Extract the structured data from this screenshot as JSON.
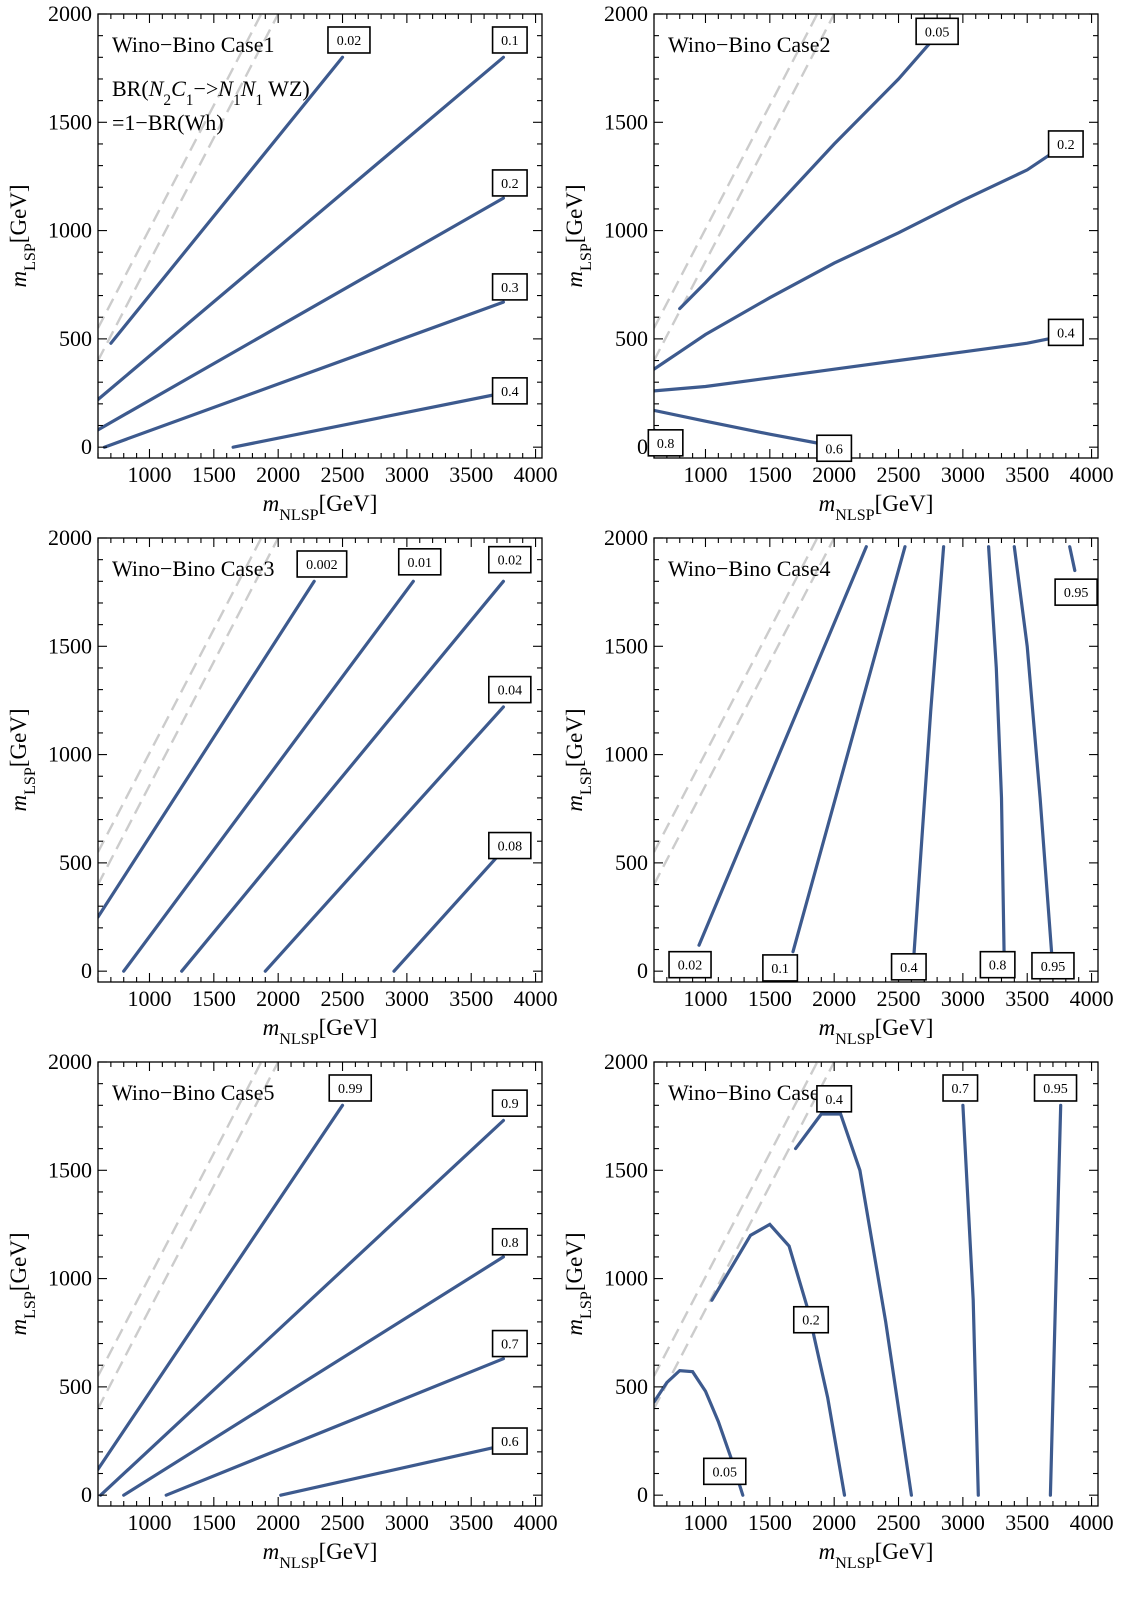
{
  "chart_data": [
    {
      "type": "line",
      "title": "Wino−Bino Case1",
      "subtitle_lines": [
        "BR(N2C1−>N1N1 WZ)",
        "=1−BR(Wh)"
      ],
      "xlabel": "m_NLSP[GeV]",
      "ylabel": "m_LSP[GeV]",
      "xlim": [
        600,
        4050
      ],
      "ylim": [
        -50,
        2000
      ],
      "x_ticks": [
        1000,
        1500,
        2000,
        2500,
        3000,
        3500,
        4000
      ],
      "y_ticks": [
        0,
        500,
        1000,
        1500,
        2000
      ],
      "guides": [
        [
          [
            600,
            400
          ],
          [
            2000,
            2000
          ]
        ],
        [
          [
            600,
            550
          ],
          [
            2000,
            2150
          ]
        ]
      ],
      "series": [
        {
          "name": "0.02",
          "points": [
            [
              700,
              480
            ],
            [
              2500,
              1800
            ]
          ],
          "label_at": [
            2550,
            1880
          ]
        },
        {
          "name": "0.1",
          "points": [
            [
              600,
              220
            ],
            [
              3750,
              1800
            ]
          ],
          "label_at": [
            3800,
            1880
          ]
        },
        {
          "name": "0.2",
          "points": [
            [
              600,
              80
            ],
            [
              3750,
              1150
            ]
          ],
          "label_at": [
            3800,
            1220
          ]
        },
        {
          "name": "0.3",
          "points": [
            [
              650,
              0
            ],
            [
              3750,
              670
            ]
          ],
          "label_at": [
            3800,
            740
          ]
        },
        {
          "name": "0.4",
          "points": [
            [
              1650,
              0
            ],
            [
              3750,
              250
            ]
          ],
          "label_at": [
            3800,
            260
          ]
        }
      ]
    },
    {
      "type": "line",
      "title": "Wino−Bino Case2",
      "xlabel": "m_NLSP[GeV]",
      "ylabel": "m_LSP[GeV]",
      "xlim": [
        600,
        4050
      ],
      "ylim": [
        -50,
        2000
      ],
      "x_ticks": [
        1000,
        1500,
        2000,
        2500,
        3000,
        3500,
        4000
      ],
      "y_ticks": [
        0,
        500,
        1000,
        1500,
        2000
      ],
      "guides": [
        [
          [
            600,
            400
          ],
          [
            2000,
            2000
          ]
        ],
        [
          [
            600,
            550
          ],
          [
            2000,
            2150
          ]
        ]
      ],
      "series": [
        {
          "name": "0.05",
          "points": [
            [
              800,
              640
            ],
            [
              1000,
              760
            ],
            [
              1500,
              1080
            ],
            [
              2000,
              1400
            ],
            [
              2500,
              1700
            ],
            [
              2750,
              1870
            ]
          ],
          "label_at": [
            2800,
            1920
          ]
        },
        {
          "name": "0.2",
          "points": [
            [
              600,
              360
            ],
            [
              700,
              400
            ],
            [
              800,
              440
            ],
            [
              1000,
              520
            ],
            [
              1500,
              690
            ],
            [
              2000,
              850
            ],
            [
              2500,
              990
            ],
            [
              3000,
              1140
            ],
            [
              3500,
              1280
            ],
            [
              3750,
              1380
            ]
          ],
          "label_at": [
            3800,
            1400
          ]
        },
        {
          "name": "0.4",
          "points": [
            [
              600,
              260
            ],
            [
              1000,
              280
            ],
            [
              1500,
              320
            ],
            [
              2000,
              360
            ],
            [
              2500,
              400
            ],
            [
              3000,
              440
            ],
            [
              3500,
              480
            ],
            [
              3750,
              510
            ]
          ],
          "label_at": [
            3800,
            530
          ]
        },
        {
          "name": "0.6",
          "points": [
            [
              600,
              170
            ],
            [
              1000,
              120
            ],
            [
              1500,
              60
            ],
            [
              1950,
              10
            ]
          ],
          "label_at": [
            2000,
            -5
          ]
        },
        {
          "name": "0.8",
          "points": [
            [
              600,
              80
            ],
            [
              620,
              70
            ]
          ],
          "label_at": [
            690,
            20
          ]
        }
      ]
    },
    {
      "type": "line",
      "title": "Wino−Bino Case3",
      "xlabel": "m_NLSP[GeV]",
      "ylabel": "m_LSP[GeV]",
      "xlim": [
        600,
        4050
      ],
      "ylim": [
        -50,
        2000
      ],
      "x_ticks": [
        1000,
        1500,
        2000,
        2500,
        3000,
        3500,
        4000
      ],
      "y_ticks": [
        0,
        500,
        1000,
        1500,
        2000
      ],
      "guides": [
        [
          [
            600,
            400
          ],
          [
            2000,
            2000
          ]
        ],
        [
          [
            600,
            550
          ],
          [
            2000,
            2150
          ]
        ]
      ],
      "series": [
        {
          "name": "0.002",
          "points": [
            [
              600,
              250
            ],
            [
              2280,
              1800
            ]
          ],
          "label_at": [
            2340,
            1880
          ]
        },
        {
          "name": "0.01",
          "points": [
            [
              800,
              0
            ],
            [
              3050,
              1800
            ]
          ],
          "label_at": [
            3100,
            1890
          ]
        },
        {
          "name": "0.02",
          "points": [
            [
              1250,
              0
            ],
            [
              3750,
              1800
            ]
          ],
          "label_at": [
            3800,
            1900
          ]
        },
        {
          "name": "0.04",
          "points": [
            [
              1900,
              0
            ],
            [
              3750,
              1220
            ]
          ],
          "label_at": [
            3800,
            1300
          ]
        },
        {
          "name": "0.08",
          "points": [
            [
              2900,
              0
            ],
            [
              3750,
              560
            ]
          ],
          "label_at": [
            3800,
            580
          ]
        }
      ]
    },
    {
      "type": "line",
      "title": "Wino−Bino Case4",
      "xlabel": "m_NLSP[GeV]",
      "ylabel": "m_LSP[GeV]",
      "xlim": [
        600,
        4050
      ],
      "ylim": [
        -50,
        2000
      ],
      "x_ticks": [
        1000,
        1500,
        2000,
        2500,
        3000,
        3500,
        4000
      ],
      "y_ticks": [
        0,
        500,
        1000,
        1500,
        2000
      ],
      "guides": [
        [
          [
            600,
            400
          ],
          [
            2000,
            2000
          ]
        ],
        [
          [
            600,
            550
          ],
          [
            2000,
            2150
          ]
        ]
      ],
      "series": [
        {
          "name": "0.02",
          "points": [
            [
              950,
              120
            ],
            [
              2250,
              1960
            ]
          ],
          "label_at": [
            880,
            30
          ]
        },
        {
          "name": "0.1",
          "points": [
            [
              1680,
              90
            ],
            [
              2550,
              1960
            ]
          ],
          "label_at": [
            1580,
            15
          ]
        },
        {
          "name": "0.4",
          "points": [
            [
              2620,
              80
            ],
            [
              2680,
              600
            ],
            [
              2750,
              1200
            ],
            [
              2850,
              1960
            ]
          ],
          "label_at": [
            2580,
            20
          ]
        },
        {
          "name": "0.8",
          "points": [
            [
              3320,
              80
            ],
            [
              3300,
              800
            ],
            [
              3260,
              1400
            ],
            [
              3200,
              1960
            ]
          ],
          "label_at": [
            3270,
            30
          ]
        },
        {
          "name": "0.95",
          "points": [
            [
              3690,
              80
            ],
            [
              3600,
              800
            ],
            [
              3500,
              1500
            ],
            [
              3400,
              1960
            ]
          ],
          "label_at": [
            3700,
            25
          ]
        },
        {
          "name": "0.95",
          "points": [
            [
              3830,
              1960
            ],
            [
              3870,
              1850
            ]
          ],
          "label_at": [
            3880,
            1750
          ]
        }
      ]
    },
    {
      "type": "line",
      "title": "Wino−Bino Case5",
      "xlabel": "m_NLSP[GeV]",
      "ylabel": "m_LSP[GeV]",
      "xlim": [
        600,
        4050
      ],
      "ylim": [
        -50,
        2000
      ],
      "x_ticks": [
        1000,
        1500,
        2000,
        2500,
        3000,
        3500,
        4000
      ],
      "y_ticks": [
        0,
        500,
        1000,
        1500,
        2000
      ],
      "guides": [
        [
          [
            600,
            400
          ],
          [
            2000,
            2000
          ]
        ],
        [
          [
            600,
            550
          ],
          [
            2000,
            2150
          ]
        ]
      ],
      "series": [
        {
          "name": "0.99",
          "points": [
            [
              600,
              120
            ],
            [
              2500,
              1800
            ]
          ],
          "label_at": [
            2560,
            1880
          ]
        },
        {
          "name": "0.9",
          "points": [
            [
              620,
              0
            ],
            [
              3750,
              1730
            ]
          ],
          "label_at": [
            3800,
            1810
          ]
        },
        {
          "name": "0.8",
          "points": [
            [
              800,
              0
            ],
            [
              3750,
              1100
            ]
          ],
          "label_at": [
            3800,
            1170
          ]
        },
        {
          "name": "0.7",
          "points": [
            [
              1130,
              0
            ],
            [
              3750,
              630
            ]
          ],
          "label_at": [
            3800,
            700
          ]
        },
        {
          "name": "0.6",
          "points": [
            [
              2020,
              0
            ],
            [
              3750,
              230
            ]
          ],
          "label_at": [
            3800,
            250
          ]
        }
      ]
    },
    {
      "type": "line",
      "title": "Wino−Bino Case6",
      "xlabel": "m_NLSP[GeV]",
      "ylabel": "m_LSP[GeV]",
      "xlim": [
        600,
        4050
      ],
      "ylim": [
        -50,
        2000
      ],
      "x_ticks": [
        1000,
        1500,
        2000,
        2500,
        3000,
        3500,
        4000
      ],
      "y_ticks": [
        0,
        500,
        1000,
        1500,
        2000
      ],
      "guides": [
        [
          [
            600,
            400
          ],
          [
            2000,
            2000
          ]
        ],
        [
          [
            600,
            550
          ],
          [
            2000,
            2150
          ]
        ]
      ],
      "series": [
        {
          "name": "0.05",
          "points": [
            [
              600,
              430
            ],
            [
              700,
              520
            ],
            [
              800,
              575
            ],
            [
              900,
              570
            ],
            [
              1000,
              480
            ],
            [
              1100,
              340
            ],
            [
              1200,
              170
            ],
            [
              1290,
              0
            ]
          ],
          "label_at": [
            1150,
            110
          ]
        },
        {
          "name": "0.2",
          "points": [
            [
              1050,
              900
            ],
            [
              1200,
              1050
            ],
            [
              1350,
              1200
            ],
            [
              1500,
              1250
            ],
            [
              1650,
              1150
            ],
            [
              1800,
              850
            ],
            [
              1950,
              450
            ],
            [
              2080,
              0
            ]
          ],
          "label_at": [
            1820,
            810
          ]
        },
        {
          "name": "0.4",
          "points": [
            [
              1700,
              1600
            ],
            [
              1900,
              1760
            ],
            [
              2050,
              1760
            ],
            [
              2200,
              1500
            ],
            [
              2400,
              800
            ],
            [
              2600,
              0
            ]
          ],
          "label_at": [
            2000,
            1830
          ]
        },
        {
          "name": "0.7",
          "points": [
            [
              3000,
              1800
            ],
            [
              3080,
              900
            ],
            [
              3120,
              0
            ]
          ],
          "label_at": [
            2980,
            1880
          ]
        },
        {
          "name": "0.95",
          "points": [
            [
              3760,
              1800
            ],
            [
              3720,
              900
            ],
            [
              3680,
              0
            ]
          ],
          "label_at": [
            3720,
            1880
          ]
        }
      ]
    }
  ]
}
